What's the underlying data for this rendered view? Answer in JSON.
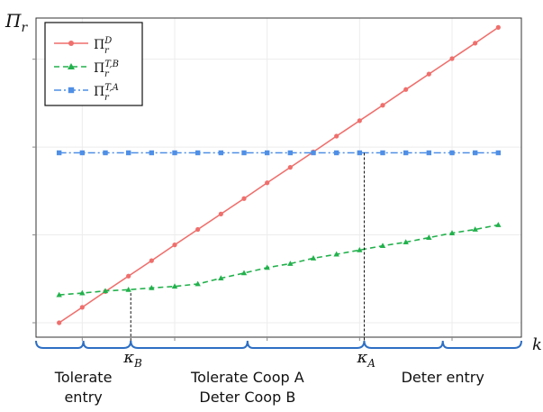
{
  "chart_data": {
    "type": "line",
    "ylabel": "Π_r",
    "xlabel": "k",
    "xlim": [
      0,
      21
    ],
    "ylim": [
      0,
      100
    ],
    "grid": true,
    "legend_placement": "top-left",
    "x": [
      1,
      2,
      3,
      4,
      5,
      6,
      7,
      8,
      9,
      10,
      11,
      12,
      13,
      14,
      15,
      16,
      17,
      18,
      19,
      20
    ],
    "series": [
      {
        "name": "Π_r^D",
        "marker": "circle",
        "line_style": "solid",
        "color": "#ef6f6c",
        "values": [
          0.0,
          5.1,
          10.3,
          15.4,
          20.5,
          25.7,
          30.8,
          35.9,
          41.0,
          46.2,
          51.3,
          56.4,
          61.6,
          66.7,
          71.8,
          77.0,
          82.1,
          87.2,
          92.3,
          97.5
        ]
      },
      {
        "name": "Π_r^{T,B}",
        "marker": "triangle",
        "line_style": "dashed",
        "color": "#22b14c",
        "values": [
          9.2,
          9.8,
          10.5,
          10.9,
          11.5,
          12.0,
          12.8,
          14.7,
          16.4,
          18.2,
          19.5,
          21.3,
          22.6,
          24.0,
          25.4,
          26.6,
          28.1,
          29.6,
          30.8,
          32.3
        ]
      },
      {
        "name": "Π_r^{T,A}",
        "marker": "square",
        "line_style": "dashdot",
        "color": "#4f8fe6",
        "values": [
          56.1,
          56.1,
          56.1,
          56.1,
          56.1,
          56.1,
          56.1,
          56.1,
          56.1,
          56.1,
          56.1,
          56.1,
          56.1,
          56.1,
          56.1,
          56.1,
          56.1,
          56.1,
          56.1,
          56.1
        ]
      }
    ],
    "thresholds": [
      {
        "label": "κ_B",
        "x": 4.1,
        "y": 9.8
      },
      {
        "label": "κ_A",
        "x": 14.2,
        "y": 56.1
      }
    ],
    "regions": [
      {
        "lines": [
          "Tolerate",
          "entry"
        ],
        "from": 0,
        "to": 4.1
      },
      {
        "lines": [
          "Tolerate Coop A",
          "Deter Coop B"
        ],
        "from": 4.1,
        "to": 14.2
      },
      {
        "lines": [
          "Deter entry"
        ],
        "from": 14.2,
        "to": 21
      }
    ]
  }
}
